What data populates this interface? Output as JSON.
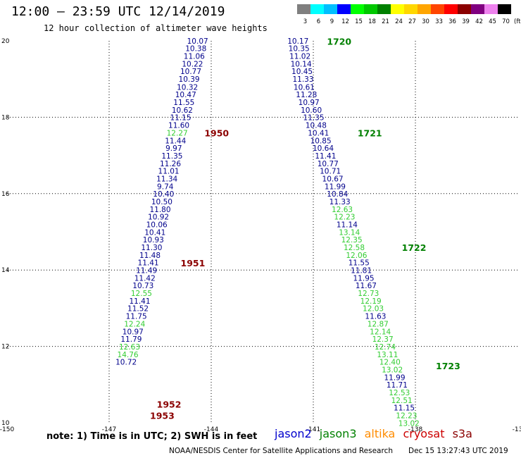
{
  "header": {
    "title": "12:00 — 23:59 UTC 12/14/2019",
    "subtitle": "12 hour collection of altimeter wave heights"
  },
  "color_scale": {
    "labels": [
      "3",
      "6",
      "9",
      "12",
      "15",
      "18",
      "21",
      "24",
      "27",
      "30",
      "33",
      "36",
      "39",
      "42",
      "45",
      "70"
    ],
    "unit": "(ft)",
    "colors": [
      "#7f7f7f",
      "#00ffff",
      "#00bfff",
      "#0000ff",
      "#00ff00",
      "#00c800",
      "#008000",
      "#ffff00",
      "#ffd700",
      "#ffa500",
      "#ff4500",
      "#ff0000",
      "#8b0000",
      "#800080",
      "#ee82ee",
      "#000000"
    ]
  },
  "axes": {
    "x_ticks": [
      "-150",
      "-147",
      "-144",
      "-141",
      "-138",
      "-13"
    ],
    "y_ticks": [
      "20",
      "18",
      "16",
      "14",
      "12",
      "10"
    ],
    "x_range": [
      -150,
      -135
    ],
    "y_range": [
      10,
      20
    ]
  },
  "chart_data": {
    "type": "scatter",
    "passes": [
      {
        "label": "1720",
        "lon": -140.6,
        "lat": 19.9,
        "color": "#008000"
      },
      {
        "label": "1721",
        "lon": -139.7,
        "lat": 17.5,
        "color": "#008000"
      },
      {
        "label": "1722",
        "lon": -138.4,
        "lat": 14.5,
        "color": "#008000"
      },
      {
        "label": "1723",
        "lon": -137.4,
        "lat": 11.4,
        "color": "#008000"
      },
      {
        "label": "1950",
        "lon": -144.2,
        "lat": 17.5,
        "color": "#8b0000"
      },
      {
        "label": "1951",
        "lon": -144.9,
        "lat": 14.1,
        "color": "#8b0000"
      },
      {
        "label": "1952",
        "lon": -145.6,
        "lat": 10.4,
        "color": "#8b0000"
      },
      {
        "label": "1953",
        "lon": -145.8,
        "lat": 10.1,
        "color": "#8b0000"
      }
    ],
    "tracks": [
      {
        "name": "track-west",
        "points": [
          {
            "lon": -144.4,
            "lat": 19.93,
            "v": "10.07",
            "c": "#00008b"
          },
          {
            "lon": -144.45,
            "lat": 19.73,
            "v": "10.38",
            "c": "#00008b"
          },
          {
            "lon": -144.5,
            "lat": 19.53,
            "v": "11.06",
            "c": "#00008b"
          },
          {
            "lon": -144.55,
            "lat": 19.33,
            "v": "10.22",
            "c": "#00008b"
          },
          {
            "lon": -144.6,
            "lat": 19.13,
            "v": "10.77",
            "c": "#00008b"
          },
          {
            "lon": -144.65,
            "lat": 18.93,
            "v": "10.39",
            "c": "#00008b"
          },
          {
            "lon": -144.7,
            "lat": 18.72,
            "v": "10.32",
            "c": "#00008b"
          },
          {
            "lon": -144.75,
            "lat": 18.52,
            "v": "10.47",
            "c": "#00008b"
          },
          {
            "lon": -144.8,
            "lat": 18.32,
            "v": "11.55",
            "c": "#00008b"
          },
          {
            "lon": -144.85,
            "lat": 18.12,
            "v": "10.62",
            "c": "#00008b"
          },
          {
            "lon": -144.9,
            "lat": 17.92,
            "v": "11.15",
            "c": "#00008b"
          },
          {
            "lon": -144.95,
            "lat": 17.72,
            "v": "11.60",
            "c": "#00008b"
          },
          {
            "lon": -145.0,
            "lat": 17.52,
            "v": "12.27",
            "c": "#32cd32"
          },
          {
            "lon": -145.05,
            "lat": 17.32,
            "v": "11.44",
            "c": "#00008b"
          },
          {
            "lon": -145.1,
            "lat": 17.12,
            "v": "9.97",
            "c": "#00008b"
          },
          {
            "lon": -145.15,
            "lat": 16.92,
            "v": "11.35",
            "c": "#00008b"
          },
          {
            "lon": -145.2,
            "lat": 16.72,
            "v": "11.26",
            "c": "#00008b"
          },
          {
            "lon": -145.25,
            "lat": 16.52,
            "v": "11.01",
            "c": "#00008b"
          },
          {
            "lon": -145.3,
            "lat": 16.32,
            "v": "11.34",
            "c": "#00008b"
          },
          {
            "lon": -145.35,
            "lat": 16.12,
            "v": "9.74",
            "c": "#00008b"
          },
          {
            "lon": -145.4,
            "lat": 15.92,
            "v": "10.40",
            "c": "#00008b"
          },
          {
            "lon": -145.45,
            "lat": 15.72,
            "v": "10.50",
            "c": "#00008b"
          },
          {
            "lon": -145.5,
            "lat": 15.52,
            "v": "11.80",
            "c": "#00008b"
          },
          {
            "lon": -145.55,
            "lat": 15.32,
            "v": "10.92",
            "c": "#00008b"
          },
          {
            "lon": -145.6,
            "lat": 15.12,
            "v": "10.06",
            "c": "#00008b"
          },
          {
            "lon": -145.65,
            "lat": 14.92,
            "v": "10.41",
            "c": "#00008b"
          },
          {
            "lon": -145.7,
            "lat": 14.72,
            "v": "10.93",
            "c": "#00008b"
          },
          {
            "lon": -145.75,
            "lat": 14.52,
            "v": "11.30",
            "c": "#00008b"
          },
          {
            "lon": -145.8,
            "lat": 14.32,
            "v": "11.48",
            "c": "#00008b"
          },
          {
            "lon": -145.85,
            "lat": 14.12,
            "v": "11.41",
            "c": "#00008b"
          },
          {
            "lon": -145.9,
            "lat": 13.92,
            "v": "11.49",
            "c": "#00008b"
          },
          {
            "lon": -145.95,
            "lat": 13.72,
            "v": "11.42",
            "c": "#00008b"
          },
          {
            "lon": -146.0,
            "lat": 13.52,
            "v": "10.73",
            "c": "#00008b"
          },
          {
            "lon": -146.05,
            "lat": 13.32,
            "v": "12.55",
            "c": "#32cd32"
          },
          {
            "lon": -146.1,
            "lat": 13.12,
            "v": "11.41",
            "c": "#00008b"
          },
          {
            "lon": -146.15,
            "lat": 12.92,
            "v": "11.52",
            "c": "#00008b"
          },
          {
            "lon": -146.2,
            "lat": 12.72,
            "v": "11.75",
            "c": "#00008b"
          },
          {
            "lon": -146.25,
            "lat": 12.52,
            "v": "12.24",
            "c": "#32cd32"
          },
          {
            "lon": -146.3,
            "lat": 12.32,
            "v": "10.97",
            "c": "#00008b"
          },
          {
            "lon": -146.35,
            "lat": 12.12,
            "v": "11.79",
            "c": "#00008b"
          },
          {
            "lon": -146.4,
            "lat": 11.92,
            "v": "12.63",
            "c": "#32cd32"
          },
          {
            "lon": -146.45,
            "lat": 11.72,
            "v": "14.76",
            "c": "#32cd32"
          },
          {
            "lon": -146.5,
            "lat": 11.52,
            "v": "10.72",
            "c": "#00008b"
          }
        ]
      },
      {
        "name": "track-east",
        "points": [
          {
            "lon": -141.45,
            "lat": 19.93,
            "v": "10.17",
            "c": "#00008b"
          },
          {
            "lon": -141.42,
            "lat": 19.73,
            "v": "10.35",
            "c": "#00008b"
          },
          {
            "lon": -141.39,
            "lat": 19.53,
            "v": "11.02",
            "c": "#00008b"
          },
          {
            "lon": -141.36,
            "lat": 19.33,
            "v": "10.14",
            "c": "#00008b"
          },
          {
            "lon": -141.33,
            "lat": 19.13,
            "v": "10.45",
            "c": "#00008b"
          },
          {
            "lon": -141.3,
            "lat": 18.93,
            "v": "11.33",
            "c": "#00008b"
          },
          {
            "lon": -141.27,
            "lat": 18.72,
            "v": "10.61",
            "c": "#00008b"
          },
          {
            "lon": -141.2,
            "lat": 18.52,
            "v": "11.28",
            "c": "#00008b"
          },
          {
            "lon": -141.13,
            "lat": 18.32,
            "v": "10.97",
            "c": "#00008b"
          },
          {
            "lon": -141.06,
            "lat": 18.12,
            "v": "10.60",
            "c": "#00008b"
          },
          {
            "lon": -140.99,
            "lat": 17.92,
            "v": "11.35",
            "c": "#00008b"
          },
          {
            "lon": -140.92,
            "lat": 17.72,
            "v": "10.48",
            "c": "#00008b"
          },
          {
            "lon": -140.85,
            "lat": 17.52,
            "v": "10.41",
            "c": "#00008b"
          },
          {
            "lon": -140.78,
            "lat": 17.32,
            "v": "10.85",
            "c": "#00008b"
          },
          {
            "lon": -140.71,
            "lat": 17.12,
            "v": "10.64",
            "c": "#00008b"
          },
          {
            "lon": -140.64,
            "lat": 16.92,
            "v": "11.41",
            "c": "#00008b"
          },
          {
            "lon": -140.57,
            "lat": 16.72,
            "v": "10.77",
            "c": "#00008b"
          },
          {
            "lon": -140.5,
            "lat": 16.52,
            "v": "10.71",
            "c": "#00008b"
          },
          {
            "lon": -140.43,
            "lat": 16.32,
            "v": "10.67",
            "c": "#00008b"
          },
          {
            "lon": -140.36,
            "lat": 16.12,
            "v": "11.99",
            "c": "#00008b"
          },
          {
            "lon": -140.29,
            "lat": 15.92,
            "v": "10.84",
            "c": "#00008b"
          },
          {
            "lon": -140.22,
            "lat": 15.72,
            "v": "11.33",
            "c": "#00008b"
          },
          {
            "lon": -140.15,
            "lat": 15.52,
            "v": "12.63",
            "c": "#32cd32"
          },
          {
            "lon": -140.08,
            "lat": 15.32,
            "v": "12.23",
            "c": "#32cd32"
          },
          {
            "lon": -140.01,
            "lat": 15.12,
            "v": "11.14",
            "c": "#00008b"
          },
          {
            "lon": -139.94,
            "lat": 14.92,
            "v": "13.14",
            "c": "#32cd32"
          },
          {
            "lon": -139.87,
            "lat": 14.72,
            "v": "12.35",
            "c": "#32cd32"
          },
          {
            "lon": -139.8,
            "lat": 14.52,
            "v": "12.58",
            "c": "#32cd32"
          },
          {
            "lon": -139.73,
            "lat": 14.32,
            "v": "12.06",
            "c": "#32cd32"
          },
          {
            "lon": -139.66,
            "lat": 14.12,
            "v": "11.55",
            "c": "#00008b"
          },
          {
            "lon": -139.59,
            "lat": 13.92,
            "v": "11.81",
            "c": "#00008b"
          },
          {
            "lon": -139.52,
            "lat": 13.72,
            "v": "11.95",
            "c": "#00008b"
          },
          {
            "lon": -139.45,
            "lat": 13.52,
            "v": "11.67",
            "c": "#00008b"
          },
          {
            "lon": -139.38,
            "lat": 13.32,
            "v": "12.73",
            "c": "#32cd32"
          },
          {
            "lon": -139.31,
            "lat": 13.12,
            "v": "12.19",
            "c": "#32cd32"
          },
          {
            "lon": -139.24,
            "lat": 12.92,
            "v": "12.03",
            "c": "#32cd32"
          },
          {
            "lon": -139.17,
            "lat": 12.72,
            "v": "11.63",
            "c": "#00008b"
          },
          {
            "lon": -139.1,
            "lat": 12.52,
            "v": "12.87",
            "c": "#32cd32"
          },
          {
            "lon": -139.03,
            "lat": 12.32,
            "v": "12.14",
            "c": "#32cd32"
          },
          {
            "lon": -138.96,
            "lat": 12.12,
            "v": "12.37",
            "c": "#32cd32"
          },
          {
            "lon": -138.89,
            "lat": 11.92,
            "v": "12.74",
            "c": "#32cd32"
          },
          {
            "lon": -138.82,
            "lat": 11.72,
            "v": "13.11",
            "c": "#32cd32"
          },
          {
            "lon": -138.75,
            "lat": 11.52,
            "v": "12.40",
            "c": "#32cd32"
          },
          {
            "lon": -138.68,
            "lat": 11.32,
            "v": "13.02",
            "c": "#32cd32"
          },
          {
            "lon": -138.61,
            "lat": 11.12,
            "v": "11.99",
            "c": "#00008b"
          },
          {
            "lon": -138.54,
            "lat": 10.92,
            "v": "11.71",
            "c": "#00008b"
          },
          {
            "lon": -138.47,
            "lat": 10.72,
            "v": "12.53",
            "c": "#32cd32"
          },
          {
            "lon": -138.4,
            "lat": 10.52,
            "v": "12.51",
            "c": "#32cd32"
          },
          {
            "lon": -138.33,
            "lat": 10.32,
            "v": "11.15",
            "c": "#00008b"
          },
          {
            "lon": -138.26,
            "lat": 10.12,
            "v": "12.23",
            "c": "#32cd32"
          },
          {
            "lon": -138.19,
            "lat": 9.92,
            "v": "13.02",
            "c": "#32cd32"
          }
        ]
      }
    ]
  },
  "footer": {
    "note": "note: 1) Time is in UTC; 2) SWH is in feet",
    "legend": [
      {
        "name": "jason2",
        "color": "#0000cd"
      },
      {
        "name": "jason3",
        "color": "#008000"
      },
      {
        "name": "altika",
        "color": "#ff8c00"
      },
      {
        "name": "cryosat",
        "color": "#cc0000"
      },
      {
        "name": "s3a",
        "color": "#8b0000"
      }
    ],
    "credit": "NOAA/NESDIS Center for Satellite Applications and Research",
    "stamp": "Dec 15 13:27:43 UTC 2019"
  }
}
